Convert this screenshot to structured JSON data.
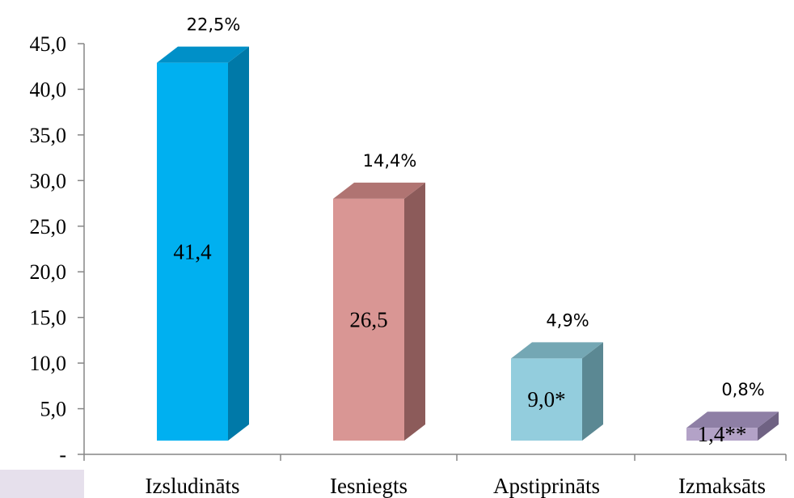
{
  "chart_data": {
    "type": "bar",
    "title": "",
    "xlabel": "",
    "ylabel": "",
    "ylim": [
      0,
      45
    ],
    "y_ticks": [
      {
        "value": 0,
        "label": "-"
      },
      {
        "value": 5,
        "label": "5,0"
      },
      {
        "value": 10,
        "label": "10,0"
      },
      {
        "value": 15,
        "label": "15,0"
      },
      {
        "value": 20,
        "label": "20,0"
      },
      {
        "value": 25,
        "label": "25,0"
      },
      {
        "value": 30,
        "label": "30,0"
      },
      {
        "value": 35,
        "label": "35,0"
      },
      {
        "value": 40,
        "label": "40,0"
      },
      {
        "value": 45,
        "label": "45,0"
      }
    ],
    "categories": [
      "Izsludināts",
      "Iesniegts",
      "Apstiprināts",
      "Izmaksāts"
    ],
    "values": [
      41.4,
      26.5,
      9.0,
      1.4
    ],
    "value_labels": [
      "41,4",
      "26,5",
      "9,0*",
      "1,4**"
    ],
    "percent_labels": [
      "22,5%",
      "14,4%",
      "4,9%",
      "0,8%"
    ],
    "grid": false,
    "style": "3d-bar",
    "colors": [
      {
        "front": "#00b0f0",
        "side": "#0079a8",
        "top": "#0090c8"
      },
      {
        "front": "#d99694",
        "side": "#8c5b5a",
        "top": "#b07472"
      },
      {
        "front": "#93cddd",
        "side": "#5b8893",
        "top": "#74a7b4"
      },
      {
        "front": "#b3a2c7",
        "side": "#6f6283",
        "top": "#8e7fa5"
      }
    ]
  }
}
